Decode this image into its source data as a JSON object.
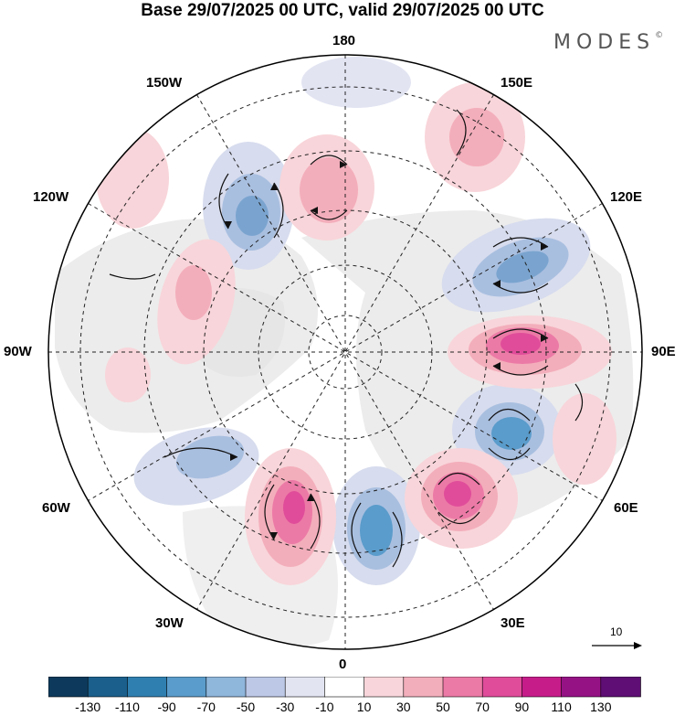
{
  "title": "Base 29/07/2025 00 UTC, valid 29/07/2025 00 UTC",
  "brand": "MODES",
  "brand_mark": "©",
  "longitude_labels": {
    "lon_180": "180",
    "lon_150e": "150E",
    "lon_120e": "120E",
    "lon_90e": "90E",
    "lon_60e": "60E",
    "lon_30e": "30E",
    "lon_0": "0",
    "lon_30w": "30W",
    "lon_60w": "60W",
    "lon_90w": "90W",
    "lon_120w": "120W",
    "lon_150w": "150W"
  },
  "reference_vector": {
    "value": "10"
  },
  "colorbar": {
    "ticks": [
      "-130",
      "-110",
      "-90",
      "-70",
      "-50",
      "-30",
      "-10",
      "10",
      "30",
      "50",
      "70",
      "90",
      "110",
      "130"
    ],
    "colors": [
      "#0d3a5c",
      "#1b5f8c",
      "#2f7fb0",
      "#5a9ccb",
      "#8fb6db",
      "#bcc8e6",
      "#e2e4f2",
      "#ffffff",
      "#f8d5da",
      "#f3aebb",
      "#ec7aa6",
      "#e04c9a",
      "#c61c8a",
      "#951285",
      "#5e0e74"
    ]
  }
}
